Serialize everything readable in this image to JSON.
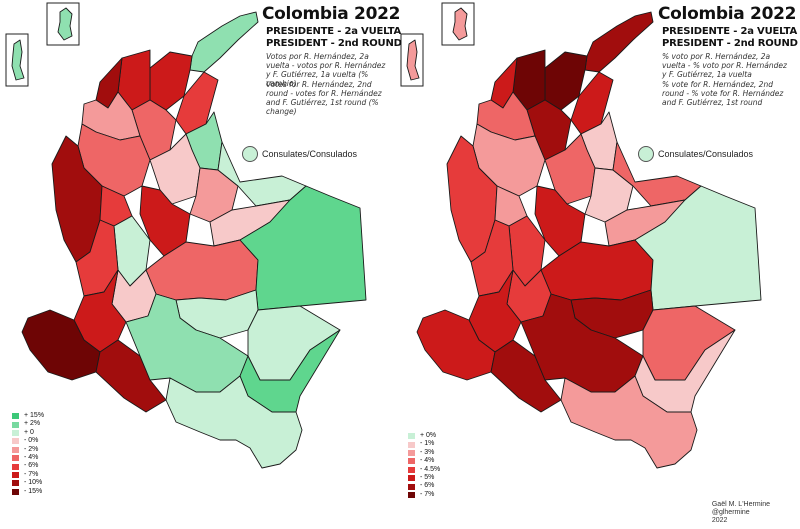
{
  "left": {
    "title": "Colombia 2022",
    "subtitle_1": "PRESIDENTE - 2a VUELTA",
    "subtitle_2": "PRESIDENT - 2nd ROUND",
    "desc_es": "Votos por R. Hernández, 2a vuelta - votos por R. Hernández y F. Gutiérrez, 1a vuelta (% cambio)",
    "desc_en": "Votes for R. Hernández, 2nd round - votes for R. Hernández and F. Gutiérrez, 1st round (% change)",
    "consulates": "Consulates/Consulados",
    "legend": [
      {
        "label": "+ 15%",
        "color": "#3cc878"
      },
      {
        "label": "+ 2%",
        "color": "#78d9a0"
      },
      {
        "label": "+ 0",
        "color": "#c8f0d6"
      },
      {
        "label": "- 0%",
        "color": "#f7c9c9"
      },
      {
        "label": "- 2%",
        "color": "#f49a9a"
      },
      {
        "label": "- 4%",
        "color": "#ee6666"
      },
      {
        "label": "- 6%",
        "color": "#e63b3b"
      },
      {
        "label": "- 7%",
        "color": "#cc1a1a"
      },
      {
        "label": "- 10%",
        "color": "#a10d0d"
      },
      {
        "label": "- 15%",
        "color": "#6e0505"
      }
    ]
  },
  "right": {
    "title": "Colombia 2022",
    "subtitle_1": "PRESIDENTE - 2a VUELTA",
    "subtitle_2": "PRESIDENT - 2nd ROUND",
    "desc_es": "% voto por R. Hernández, 2a vuelta - % voto por R. Hernández y F. Gutiérrez, 1a vuelta",
    "desc_en": "% vote for R. Hernández, 2nd round - % vote for R. Hernández and F. Gutiérrez, 1st round",
    "consulates": "Consulates/Consulados",
    "legend": [
      {
        "label": "+ 0%",
        "color": "#c8f0d6"
      },
      {
        "label": "- 1%",
        "color": "#f7c9c9"
      },
      {
        "label": "- 3%",
        "color": "#f49a9a"
      },
      {
        "label": "- 4%",
        "color": "#ee6666"
      },
      {
        "label": "- 4.5%",
        "color": "#e63b3b"
      },
      {
        "label": "- 5%",
        "color": "#cc1a1a"
      },
      {
        "label": "- 6%",
        "color": "#a10d0d"
      },
      {
        "label": "- 7%",
        "color": "#6e0505"
      }
    ]
  },
  "credit": {
    "line1": "Gaël M. L'Hermine",
    "line2": "@glhermine",
    "line3": "2022"
  }
}
